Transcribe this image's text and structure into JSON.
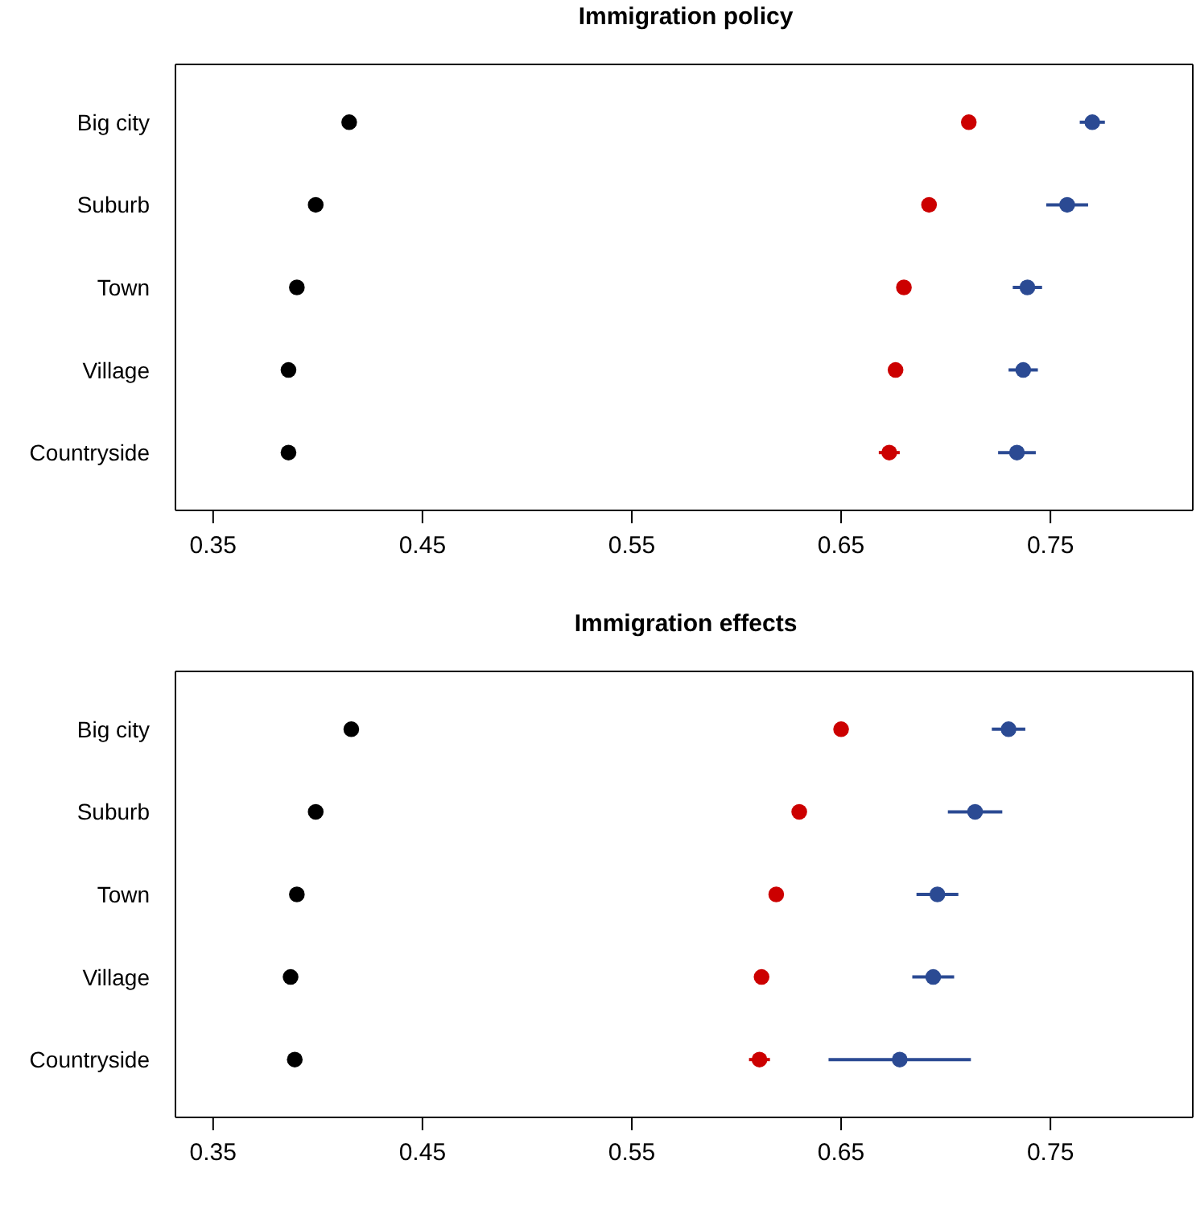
{
  "chart_data": [
    {
      "type": "scatter",
      "title": "Immigration policy",
      "orientation": "horizontal",
      "marker": "circle",
      "categories": [
        "Big city",
        "Suburb",
        "Town",
        "Village",
        "Countryside"
      ],
      "xlim": [
        0.332,
        0.818
      ],
      "xticks": [
        0.35,
        0.45,
        0.55,
        0.65,
        0.75
      ],
      "series": [
        {
          "color": "#000000",
          "values": [
            0.415,
            0.399,
            0.39,
            0.386,
            0.386
          ]
        },
        {
          "color": "#cc0000",
          "values": [
            0.711,
            0.692,
            0.68,
            0.676,
            0.673
          ],
          "errors": [
            null,
            null,
            null,
            null,
            0.005
          ]
        },
        {
          "color": "#2b4a93",
          "values": [
            0.77,
            0.758,
            0.739,
            0.737,
            0.734
          ],
          "errors": [
            0.006,
            0.01,
            0.007,
            0.007,
            0.009
          ]
        }
      ]
    },
    {
      "type": "scatter",
      "title": "Immigration effects",
      "orientation": "horizontal",
      "marker": "circle",
      "categories": [
        "Big city",
        "Suburb",
        "Town",
        "Village",
        "Countryside"
      ],
      "xlim": [
        0.332,
        0.818
      ],
      "xticks": [
        0.35,
        0.45,
        0.55,
        0.65,
        0.75
      ],
      "series": [
        {
          "color": "#000000",
          "values": [
            0.416,
            0.399,
            0.39,
            0.387,
            0.389
          ]
        },
        {
          "color": "#cc0000",
          "values": [
            0.65,
            0.63,
            0.619,
            0.612,
            0.611
          ],
          "errors": [
            null,
            null,
            null,
            null,
            0.005
          ]
        },
        {
          "color": "#2b4a93",
          "values": [
            0.73,
            0.714,
            0.696,
            0.694,
            0.678
          ],
          "errors": [
            0.008,
            0.013,
            0.01,
            0.01,
            [
              0.644,
              0.712
            ]
          ]
        }
      ]
    }
  ]
}
